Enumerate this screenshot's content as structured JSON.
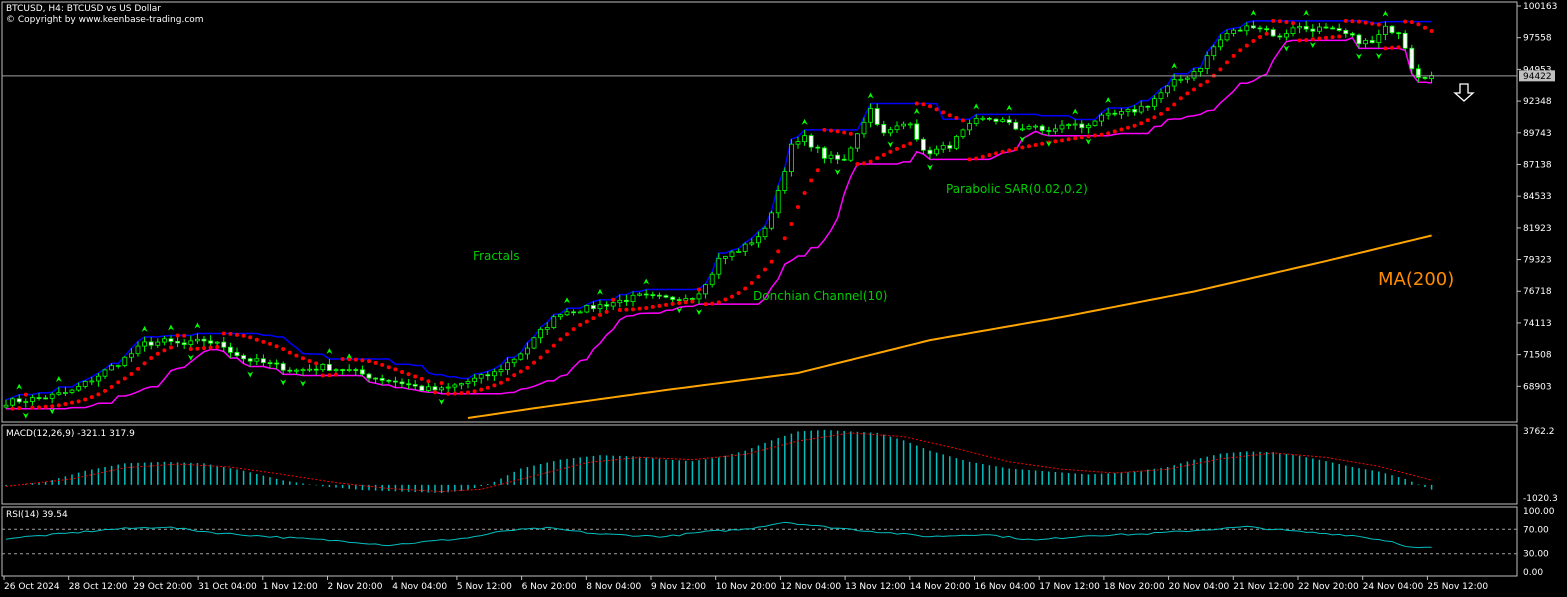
{
  "header": {
    "title": "BTCUSD, H4:  BTCUSD vs US Dollar",
    "copyright": "© Copyright by www.keenbase-trading.com"
  },
  "colors": {
    "background": "#000000",
    "border": "#c0c0c0",
    "candle": "#00ff00",
    "candle_body_up": "#000000",
    "candle_body_down": "#ffffff",
    "donchian": "#0000ff",
    "donchian_lower": "#ff00ff",
    "sar": "#ff0000",
    "ma": "#ffa500",
    "annotation_green": "#00cc00",
    "annotation_orange": "#ff8c00",
    "macd": "#00bfbf",
    "macd_signal": "#ff0000",
    "rsi": "#00bfbf",
    "text": "#ffffff"
  },
  "annotations": {
    "fractals": "Fractals",
    "donchian": "Donchian Channel(10)",
    "sar": "Parabolic SAR(0.02,0.2)",
    "ma": "MA(200)"
  },
  "price_axis": {
    "ticks": [
      "100163",
      "97558",
      "94953",
      "92348",
      "89743",
      "87138",
      "84533",
      "81923",
      "79323",
      "76718",
      "74113",
      "71508",
      "68903"
    ],
    "current_price": "94422",
    "range": [
      66300,
      100163
    ]
  },
  "time_axis": {
    "labels": [
      "26 Oct 2024",
      "28 Oct 12:00",
      "29 Oct 20:00",
      "31 Oct 04:00",
      "1 Nov 12:00",
      "2 Nov 20:00",
      "4 Nov 04:00",
      "5 Nov 12:00",
      "6 Nov 20:00",
      "8 Nov 04:00",
      "9 Nov 12:00",
      "10 Nov 20:00",
      "12 Nov 04:00",
      "13 Nov 12:00",
      "14 Nov 20:00",
      "16 Nov 04:00",
      "17 Nov 12:00",
      "18 Nov 20:00",
      "20 Nov 04:00",
      "21 Nov 12:00",
      "22 Nov 20:00",
      "24 Nov 04:00",
      "25 Nov 12:00"
    ]
  },
  "macd_panel": {
    "label": "MACD(12,26,9) -321.1 317.9",
    "top_tick": "3762.2",
    "bottom_tick": "-1020.3",
    "range": [
      -1020.3,
      3762.2
    ]
  },
  "rsi_panel": {
    "label": "RSI(14) 39.54",
    "ticks": [
      "100.00",
      "70.00",
      "30.00",
      "0.00"
    ],
    "levels": [
      70,
      30
    ]
  },
  "chart_data": {
    "type": "candlestick",
    "symbol": "BTCUSD",
    "timeframe": "H4",
    "ylim": [
      66300,
      100163
    ],
    "price_anchors": [
      [
        0,
        67600
      ],
      [
        3,
        67800
      ],
      [
        6,
        68000
      ],
      [
        10,
        68500
      ],
      [
        14,
        69800
      ],
      [
        18,
        71200
      ],
      [
        21,
        72400
      ],
      [
        24,
        72600
      ],
      [
        27,
        72300
      ],
      [
        30,
        72700
      ],
      [
        33,
        72200
      ],
      [
        36,
        71200
      ],
      [
        40,
        70700
      ],
      [
        44,
        70200
      ],
      [
        48,
        70500
      ],
      [
        52,
        70200
      ],
      [
        56,
        69600
      ],
      [
        60,
        69200
      ],
      [
        63,
        68700
      ],
      [
        66,
        68600
      ],
      [
        70,
        69300
      ],
      [
        74,
        70000
      ],
      [
        77,
        71200
      ],
      [
        79,
        72100
      ],
      [
        81,
        73400
      ],
      [
        84,
        75000
      ],
      [
        88,
        75300
      ],
      [
        92,
        75800
      ],
      [
        96,
        76300
      ],
      [
        100,
        76100
      ],
      [
        104,
        76300
      ],
      [
        106,
        77200
      ],
      [
        108,
        79300
      ],
      [
        112,
        80400
      ],
      [
        115,
        81700
      ],
      [
        117,
        85000
      ],
      [
        119,
        88600
      ],
      [
        121,
        89300
      ],
      [
        124,
        87800
      ],
      [
        127,
        87400
      ],
      [
        129,
        89800
      ],
      [
        131,
        91700
      ],
      [
        133,
        89600
      ],
      [
        135,
        90200
      ],
      [
        137,
        90700
      ],
      [
        139,
        88100
      ],
      [
        141,
        88300
      ],
      [
        143,
        88700
      ],
      [
        145,
        89800
      ],
      [
        147,
        90700
      ],
      [
        149,
        90900
      ],
      [
        151,
        90700
      ],
      [
        153,
        90100
      ],
      [
        155,
        90300
      ],
      [
        157,
        89900
      ],
      [
        159,
        90000
      ],
      [
        161,
        90500
      ],
      [
        163,
        90200
      ],
      [
        165,
        90800
      ],
      [
        167,
        91100
      ],
      [
        169,
        91300
      ],
      [
        171,
        91600
      ],
      [
        173,
        92100
      ],
      [
        175,
        93000
      ],
      [
        177,
        93900
      ],
      [
        179,
        94400
      ],
      [
        181,
        95200
      ],
      [
        183,
        96800
      ],
      [
        185,
        97900
      ],
      [
        187,
        98200
      ],
      [
        189,
        98600
      ],
      [
        191,
        98200
      ],
      [
        193,
        97500
      ],
      [
        195,
        98500
      ],
      [
        197,
        98300
      ],
      [
        199,
        98300
      ],
      [
        201,
        98100
      ],
      [
        203,
        97800
      ],
      [
        205,
        97300
      ],
      [
        207,
        97100
      ],
      [
        209,
        98300
      ],
      [
        211,
        98100
      ],
      [
        212,
        96900
      ],
      [
        213,
        95200
      ],
      [
        214,
        94500
      ],
      [
        216,
        94400
      ]
    ],
    "candle_count": 217,
    "series": [
      {
        "type": "ma",
        "anchors": [
          [
            70,
            66300
          ],
          [
            80,
            67100
          ],
          [
            100,
            68600
          ],
          [
            120,
            70000
          ],
          [
            140,
            72700
          ],
          [
            160,
            74600
          ],
          [
            180,
            76700
          ],
          [
            200,
            79200
          ],
          [
            216,
            81300
          ]
        ]
      },
      {
        "type": "sar"
      },
      {
        "type": "donchian",
        "period": 10
      },
      {
        "type": "fractals"
      }
    ],
    "macd": {
      "range": [
        -1020.3,
        3762.2
      ],
      "hist_anchors": [
        [
          0,
          -70
        ],
        [
          6,
          200
        ],
        [
          12,
          950
        ],
        [
          18,
          1450
        ],
        [
          24,
          1550
        ],
        [
          30,
          1450
        ],
        [
          36,
          950
        ],
        [
          42,
          300
        ],
        [
          48,
          -100
        ],
        [
          54,
          -350
        ],
        [
          60,
          -450
        ],
        [
          66,
          -550
        ],
        [
          70,
          -350
        ],
        [
          74,
          200
        ],
        [
          78,
          1100
        ],
        [
          84,
          1700
        ],
        [
          90,
          2000
        ],
        [
          96,
          1900
        ],
        [
          100,
          1700
        ],
        [
          104,
          1600
        ],
        [
          108,
          1850
        ],
        [
          112,
          2300
        ],
        [
          116,
          3000
        ],
        [
          120,
          3600
        ],
        [
          124,
          3700
        ],
        [
          128,
          3600
        ],
        [
          132,
          3500
        ],
        [
          136,
          3000
        ],
        [
          140,
          2300
        ],
        [
          146,
          1550
        ],
        [
          152,
          1100
        ],
        [
          158,
          900
        ],
        [
          164,
          700
        ],
        [
          170,
          850
        ],
        [
          176,
          1200
        ],
        [
          180,
          1700
        ],
        [
          184,
          2100
        ],
        [
          188,
          2250
        ],
        [
          192,
          2200
        ],
        [
          196,
          1950
        ],
        [
          200,
          1600
        ],
        [
          204,
          1200
        ],
        [
          208,
          900
        ],
        [
          212,
          400
        ],
        [
          215,
          -150
        ],
        [
          216,
          -321.1
        ]
      ],
      "signal_anchors": [
        [
          0,
          -100
        ],
        [
          10,
          400
        ],
        [
          18,
          1150
        ],
        [
          26,
          1400
        ],
        [
          34,
          1200
        ],
        [
          42,
          700
        ],
        [
          50,
          150
        ],
        [
          58,
          -250
        ],
        [
          66,
          -450
        ],
        [
          72,
          -300
        ],
        [
          80,
          600
        ],
        [
          88,
          1500
        ],
        [
          96,
          1850
        ],
        [
          104,
          1700
        ],
        [
          112,
          2050
        ],
        [
          120,
          2950
        ],
        [
          128,
          3500
        ],
        [
          136,
          3250
        ],
        [
          144,
          2450
        ],
        [
          152,
          1550
        ],
        [
          160,
          1050
        ],
        [
          168,
          800
        ],
        [
          176,
          1050
        ],
        [
          184,
          1750
        ],
        [
          192,
          2150
        ],
        [
          200,
          1850
        ],
        [
          208,
          1250
        ],
        [
          216,
          317.9
        ]
      ]
    },
    "rsi": {
      "ylim": [
        0,
        100
      ],
      "levels": [
        70,
        30
      ],
      "anchors": [
        [
          0,
          55
        ],
        [
          8,
          62
        ],
        [
          16,
          70
        ],
        [
          24,
          74
        ],
        [
          32,
          64
        ],
        [
          40,
          58
        ],
        [
          46,
          54
        ],
        [
          52,
          50
        ],
        [
          58,
          44
        ],
        [
          64,
          50
        ],
        [
          70,
          56
        ],
        [
          76,
          68
        ],
        [
          82,
          72
        ],
        [
          90,
          62
        ],
        [
          100,
          58
        ],
        [
          106,
          66
        ],
        [
          112,
          70
        ],
        [
          118,
          82
        ],
        [
          124,
          74
        ],
        [
          132,
          66
        ],
        [
          140,
          58
        ],
        [
          148,
          62
        ],
        [
          156,
          52
        ],
        [
          164,
          60
        ],
        [
          172,
          62
        ],
        [
          180,
          68
        ],
        [
          188,
          74
        ],
        [
          196,
          66
        ],
        [
          204,
          60
        ],
        [
          210,
          50
        ],
        [
          213,
          40
        ],
        [
          216,
          39.54
        ]
      ]
    }
  }
}
